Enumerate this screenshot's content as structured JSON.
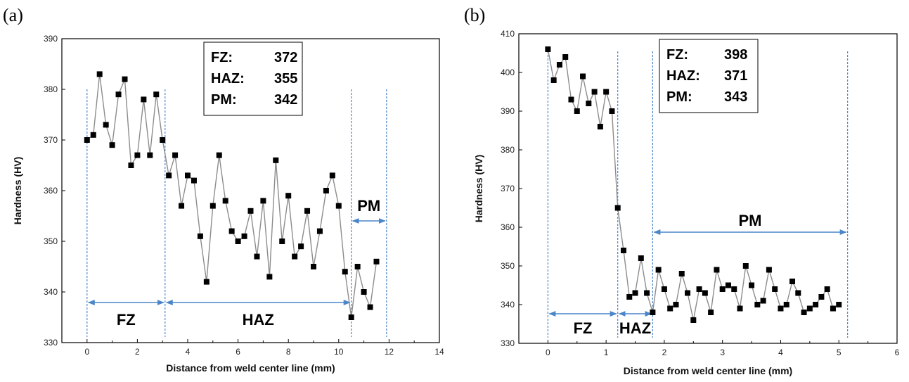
{
  "chart_data": [
    {
      "type": "line",
      "panel_label": "(a)",
      "xlabel": "Distance from weld center line (mm)",
      "ylabel": "Hardness (HV)",
      "xlim": [
        -1,
        14
      ],
      "ylim": [
        330,
        390
      ],
      "x_ticks": [
        0,
        2,
        4,
        6,
        8,
        10,
        12,
        14
      ],
      "y_ticks": [
        330,
        340,
        350,
        360,
        370,
        380,
        390
      ],
      "series": [
        {
          "x": [
            0,
            0.25,
            0.5,
            0.75,
            1.0,
            1.25,
            1.5,
            1.75,
            2.0,
            2.25,
            2.5,
            2.75,
            3.0,
            3.25,
            3.5,
            3.75,
            4.0,
            4.25,
            4.5,
            4.75,
            5.0,
            5.25,
            5.5,
            5.75,
            6.0,
            6.25,
            6.5,
            6.75,
            7.0,
            7.25,
            7.5,
            7.75,
            8.0,
            8.25,
            8.5,
            8.75,
            9.0,
            9.25,
            9.5,
            9.75,
            10.0,
            10.25,
            10.5,
            10.75,
            11.0,
            11.25,
            11.5
          ],
          "y": [
            370,
            371,
            383,
            373,
            369,
            379,
            382,
            365,
            367,
            378,
            367,
            379,
            370,
            363,
            367,
            357,
            363,
            362,
            351,
            342,
            357,
            367,
            358,
            352,
            350,
            351,
            356,
            347,
            358,
            343,
            366,
            350,
            359,
            347,
            349,
            356,
            345,
            352,
            360,
            363,
            357,
            344,
            335,
            345,
            340,
            337,
            346
          ]
        }
      ],
      "region_lines_x": [
        0,
        3.1,
        10.5,
        11.9
      ],
      "annotations": {
        "stats": [
          {
            "label": "FZ:",
            "value": "372"
          },
          {
            "label": "HAZ:",
            "value": "355"
          },
          {
            "label": "PM:",
            "value": "342"
          }
        ],
        "regions": [
          {
            "label": "FZ",
            "from": 0,
            "to": 3.1
          },
          {
            "label": "HAZ",
            "from": 3.1,
            "to": 10.5
          },
          {
            "label": "PM",
            "from": 10.5,
            "to": 11.9
          }
        ]
      }
    },
    {
      "type": "line",
      "panel_label": "(b)",
      "xlabel": "Distance from weld center line (mm)",
      "ylabel": "Hardness (HV)",
      "xlim": [
        -0.5,
        6
      ],
      "ylim": [
        330,
        410
      ],
      "x_ticks": [
        0,
        1,
        2,
        3,
        4,
        5,
        6
      ],
      "y_ticks": [
        330,
        340,
        350,
        360,
        370,
        380,
        390,
        400,
        410
      ],
      "series": [
        {
          "x": [
            0,
            0.1,
            0.2,
            0.3,
            0.4,
            0.5,
            0.6,
            0.7,
            0.8,
            0.9,
            1.0,
            1.1,
            1.2,
            1.3,
            1.4,
            1.5,
            1.6,
            1.7,
            1.8,
            1.9,
            2.0,
            2.1,
            2.2,
            2.3,
            2.4,
            2.5,
            2.6,
            2.7,
            2.8,
            2.9,
            3.0,
            3.1,
            3.2,
            3.3,
            3.4,
            3.5,
            3.6,
            3.7,
            3.8,
            3.9,
            4.0,
            4.1,
            4.2,
            4.3,
            4.4,
            4.5,
            4.6,
            4.7,
            4.8,
            4.9,
            5.0
          ],
          "y": [
            406,
            398,
            402,
            404,
            393,
            390,
            399,
            392,
            395,
            386,
            395,
            390,
            365,
            354,
            342,
            343,
            352,
            343,
            338,
            349,
            344,
            339,
            340,
            348,
            343,
            336,
            344,
            343,
            338,
            349,
            344,
            345,
            344,
            339,
            350,
            345,
            340,
            341,
            349,
            344,
            339,
            340,
            346,
            343,
            338,
            339,
            340,
            342,
            344,
            339,
            340
          ]
        }
      ],
      "region_lines_x": [
        0,
        1.2,
        1.8,
        5.15
      ],
      "annotations": {
        "stats": [
          {
            "label": "FZ:",
            "value": "398"
          },
          {
            "label": "HAZ:",
            "value": "371"
          },
          {
            "label": "PM:",
            "value": "343"
          }
        ],
        "regions": [
          {
            "label": "FZ",
            "from": 0,
            "to": 1.2
          },
          {
            "label": "HAZ",
            "from": 1.2,
            "to": 1.8
          },
          {
            "label": "PM",
            "from": 1.8,
            "to": 5.15
          }
        ]
      }
    }
  ],
  "colors": {
    "line": "#8c8c8c",
    "marker": "#000000",
    "region_line": "#4a86c8",
    "arrow": "#4a86c8"
  }
}
